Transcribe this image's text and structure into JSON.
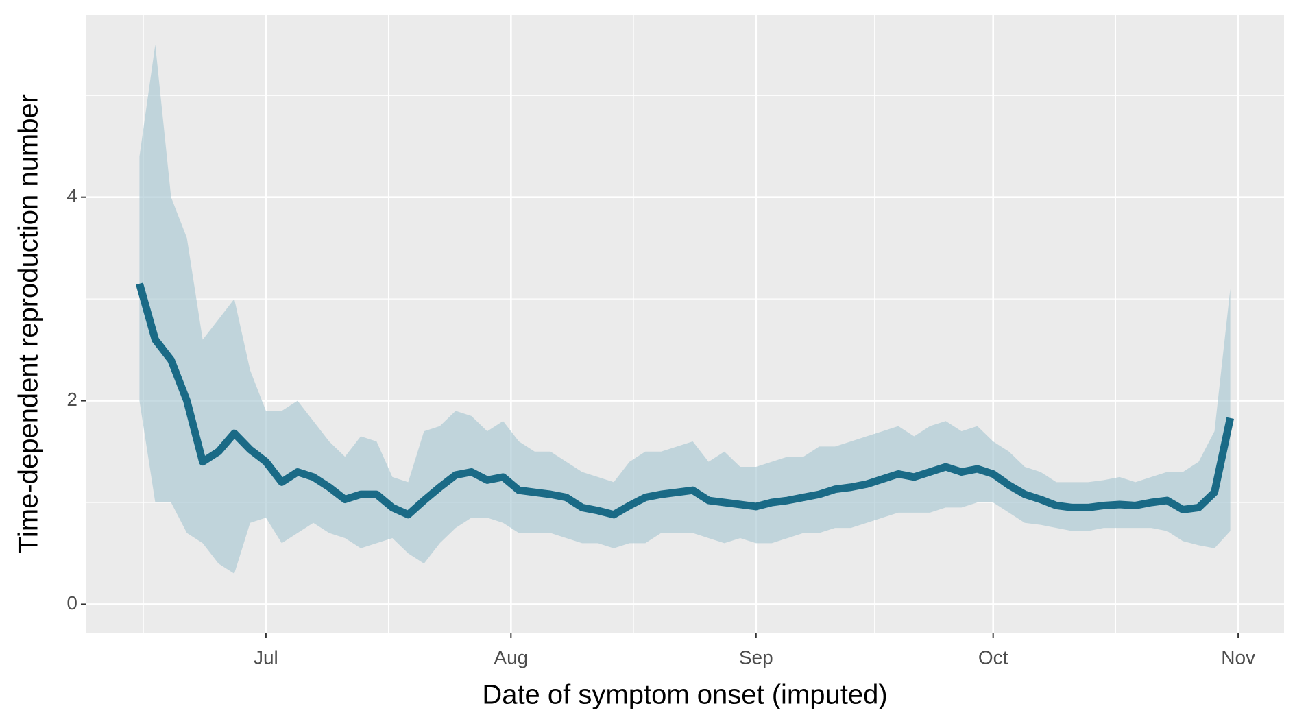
{
  "chart_data": {
    "type": "line",
    "x_label": "Date of symptom onset (imputed)",
    "y_label": "Time-dependent reproduction number",
    "x": [
      166,
      168,
      170,
      172,
      174,
      176,
      178,
      180,
      182,
      184,
      186,
      188,
      190,
      192,
      194,
      196,
      198,
      200,
      202,
      204,
      206,
      208,
      210,
      212,
      214,
      216,
      218,
      220,
      222,
      224,
      226,
      228,
      230,
      232,
      234,
      236,
      238,
      240,
      242,
      244,
      246,
      248,
      250,
      252,
      254,
      256,
      258,
      260,
      262,
      264,
      266,
      268,
      270,
      272,
      274,
      276,
      278,
      280,
      282,
      284,
      286,
      288,
      290,
      292,
      294,
      296,
      298,
      300,
      302,
      304
    ],
    "values": [
      3.15,
      2.6,
      2.4,
      2.0,
      1.4,
      1.5,
      1.68,
      1.52,
      1.4,
      1.2,
      1.3,
      1.25,
      1.15,
      1.03,
      1.08,
      1.08,
      0.95,
      0.88,
      1.02,
      1.15,
      1.27,
      1.3,
      1.22,
      1.25,
      1.12,
      1.1,
      1.08,
      1.05,
      0.95,
      0.92,
      0.88,
      0.97,
      1.05,
      1.08,
      1.1,
      1.12,
      1.02,
      1.0,
      0.98,
      0.96,
      1.0,
      1.02,
      1.05,
      1.08,
      1.13,
      1.15,
      1.18,
      1.23,
      1.28,
      1.25,
      1.3,
      1.35,
      1.3,
      1.33,
      1.28,
      1.17,
      1.08,
      1.03,
      0.97,
      0.95,
      0.95,
      0.97,
      0.98,
      0.97,
      1.0,
      1.02,
      0.93,
      0.95,
      1.1,
      1.83
    ],
    "upper": [
      4.4,
      5.5,
      4.0,
      3.6,
      2.6,
      2.8,
      3.0,
      2.3,
      1.9,
      1.9,
      2.0,
      1.8,
      1.6,
      1.45,
      1.65,
      1.6,
      1.25,
      1.2,
      1.7,
      1.75,
      1.9,
      1.85,
      1.7,
      1.8,
      1.6,
      1.5,
      1.5,
      1.4,
      1.3,
      1.25,
      1.2,
      1.4,
      1.5,
      1.5,
      1.55,
      1.6,
      1.4,
      1.5,
      1.35,
      1.35,
      1.4,
      1.45,
      1.45,
      1.55,
      1.55,
      1.6,
      1.65,
      1.7,
      1.75,
      1.65,
      1.75,
      1.8,
      1.7,
      1.75,
      1.6,
      1.5,
      1.35,
      1.3,
      1.2,
      1.2,
      1.2,
      1.22,
      1.25,
      1.2,
      1.25,
      1.3,
      1.3,
      1.4,
      1.7,
      3.1
    ],
    "lower": [
      2.0,
      1.0,
      1.0,
      0.7,
      0.6,
      0.4,
      0.3,
      0.8,
      0.85,
      0.6,
      0.7,
      0.8,
      0.7,
      0.65,
      0.55,
      0.6,
      0.65,
      0.5,
      0.4,
      0.6,
      0.75,
      0.85,
      0.85,
      0.8,
      0.7,
      0.7,
      0.7,
      0.65,
      0.6,
      0.6,
      0.55,
      0.6,
      0.6,
      0.7,
      0.7,
      0.7,
      0.65,
      0.6,
      0.65,
      0.6,
      0.6,
      0.65,
      0.7,
      0.7,
      0.75,
      0.75,
      0.8,
      0.85,
      0.9,
      0.9,
      0.9,
      0.95,
      0.95,
      1.0,
      1.0,
      0.9,
      0.8,
      0.78,
      0.75,
      0.72,
      0.72,
      0.75,
      0.75,
      0.75,
      0.75,
      0.72,
      0.62,
      0.58,
      0.55,
      0.72
    ],
    "color": "#1a6a86",
    "band_color": "#a9c7d3",
    "xlim": [
      159.2,
      310.8
    ],
    "xticks": [
      {
        "value": 182,
        "label": "Jul"
      },
      {
        "value": 213,
        "label": "Aug"
      },
      {
        "value": 244,
        "label": "Sep"
      },
      {
        "value": 274,
        "label": "Oct"
      },
      {
        "value": 305,
        "label": "Nov"
      }
    ],
    "ylim": [
      -0.28,
      5.79
    ],
    "yticks": [
      0,
      2,
      4
    ],
    "grid": true
  }
}
